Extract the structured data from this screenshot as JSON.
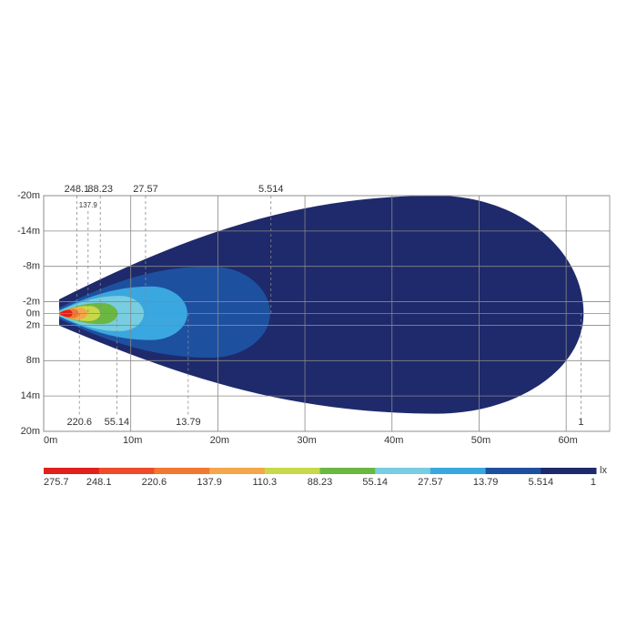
{
  "chart_data": {
    "type": "isolux",
    "xlim": [
      0,
      65
    ],
    "ylim": [
      -20,
      20
    ],
    "xticks": [
      {
        "value": 0,
        "label": "0m"
      },
      {
        "value": 10,
        "label": "10m"
      },
      {
        "value": 20,
        "label": "20m"
      },
      {
        "value": 30,
        "label": "30m"
      },
      {
        "value": 40,
        "label": "40m"
      },
      {
        "value": 50,
        "label": "50m"
      },
      {
        "value": 60,
        "label": "60m"
      }
    ],
    "yticks": [
      {
        "value": -20,
        "label": "-20m"
      },
      {
        "value": -14,
        "label": "-14m"
      },
      {
        "value": -8,
        "label": "-8m"
      },
      {
        "value": -2,
        "label": "-2m"
      },
      {
        "value": 0,
        "label": "0m"
      },
      {
        "value": 2,
        "label": "2m"
      },
      {
        "value": 8,
        "label": "8m"
      },
      {
        "value": 14,
        "label": "14m"
      },
      {
        "value": 20,
        "label": "20m"
      }
    ],
    "grid": true,
    "contours": [
      {
        "color": "#1e2a6b",
        "x_max": 62,
        "y_min": -20,
        "y_max": 17
      },
      {
        "color": "#1e50a0",
        "x_max": 26,
        "y_min": -8,
        "y_max": 7.5
      },
      {
        "color": "#3aa7e0",
        "x_max": 16.5,
        "y_min": -4.6,
        "y_max": 4.5
      },
      {
        "color": "#78cde0",
        "x_max": 11.5,
        "y_min": -3,
        "y_max": 3
      },
      {
        "color": "#6ab842",
        "x_max": 8.5,
        "y_min": -1.8,
        "y_max": 1.8
      },
      {
        "color": "#c9d848",
        "x_max": 6.5,
        "y_min": -1.3,
        "y_max": 1.3
      },
      {
        "color": "#f5a54a",
        "x_max": 5,
        "y_min": -1,
        "y_max": 1
      },
      {
        "color": "#f07830",
        "x_max": 4,
        "y_min": -0.8,
        "y_max": 0.8
      },
      {
        "color": "#e0201c",
        "x_max": 3.3,
        "y_min": -0.6,
        "y_max": 0.6
      }
    ],
    "top_labels": [
      {
        "value": 248.1,
        "x": 3.8
      },
      {
        "value": 137.9,
        "x": 5.1
      },
      {
        "value": 88.23,
        "x": 6.5
      },
      {
        "value": 27.57,
        "x": 11.7
      },
      {
        "value": 5.514,
        "x": 26.1
      }
    ],
    "bottom_labels": [
      {
        "value": 220.6,
        "x": 4.1
      },
      {
        "value": 55.14,
        "x": 8.4
      },
      {
        "value": 13.79,
        "x": 16.6
      },
      {
        "value": 1,
        "x": 61.7
      }
    ],
    "legend": {
      "levels": [
        275.7,
        248.1,
        220.6,
        137.9,
        110.3,
        88.23,
        55.14,
        27.57,
        13.79,
        5.514,
        1
      ],
      "colors": [
        "#e0201c",
        "#ee4b2b",
        "#f07830",
        "#f5a54a",
        "#c9d848",
        "#6ab842",
        "#78cde0",
        "#3aa7e0",
        "#1e50a0",
        "#1e2a6b"
      ],
      "unit": "lx"
    }
  }
}
